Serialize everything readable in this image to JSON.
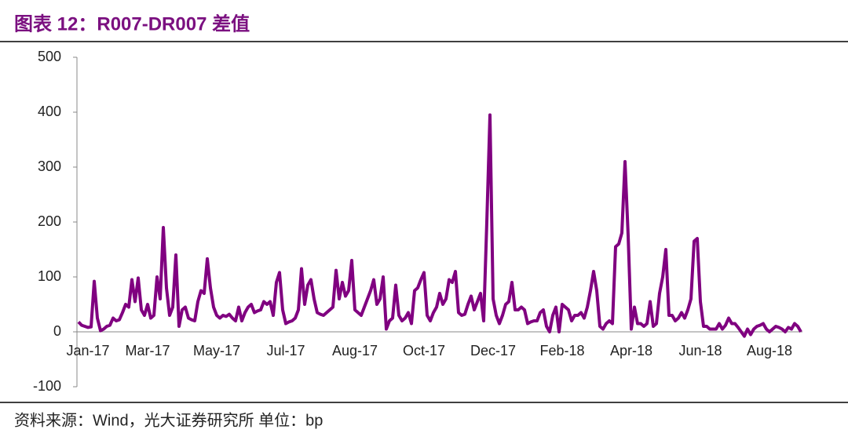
{
  "chart_data": {
    "type": "line",
    "title": "图表 12：R007-DR007 差值",
    "source": "资料来源：Wind，光大证券研究所 单位：bp",
    "color": "#800080",
    "ylim": [
      -100,
      500
    ],
    "yticks": [
      -100,
      0,
      100,
      200,
      300,
      400,
      500
    ],
    "grid": false,
    "categories": [
      null,
      null,
      null,
      "Jan-17",
      null,
      null,
      null,
      null,
      null,
      null,
      null,
      null,
      null,
      null,
      null,
      null,
      null,
      null,
      null,
      null,
      null,
      null,
      "Mar-17",
      null,
      null,
      null,
      null,
      null,
      null,
      null,
      null,
      null,
      null,
      null,
      null,
      null,
      null,
      null,
      null,
      null,
      null,
      null,
      null,
      null,
      "May-17",
      null,
      null,
      null,
      null,
      null,
      null,
      null,
      null,
      null,
      null,
      null,
      null,
      null,
      null,
      null,
      null,
      null,
      null,
      null,
      null,
      null,
      "Jul-17",
      null,
      null,
      null,
      null,
      null,
      null,
      null,
      null,
      null,
      null,
      null,
      null,
      null,
      null,
      null,
      null,
      null,
      null,
      null,
      null,
      null,
      "Aug-17",
      null,
      null,
      null,
      null,
      null,
      null,
      null,
      null,
      null,
      null,
      null,
      null,
      null,
      null,
      null,
      null,
      null,
      null,
      null,
      null,
      null,
      "Oct-17",
      null,
      null,
      null,
      null,
      null,
      null,
      null,
      null,
      null,
      null,
      null,
      null,
      null,
      null,
      null,
      null,
      null,
      null,
      null,
      null,
      null,
      "Dec-17",
      null,
      null,
      null,
      null,
      null,
      null,
      null,
      null,
      null,
      null,
      null,
      null,
      null,
      null,
      null,
      null,
      null,
      null,
      null,
      null,
      null,
      "Feb-18",
      null,
      null,
      null,
      null,
      null,
      null,
      null,
      null,
      null,
      null,
      null,
      null,
      null,
      null,
      null,
      null,
      null,
      null,
      null,
      null,
      null,
      "Apr-18",
      null,
      null,
      null,
      null,
      null,
      null,
      null,
      null,
      null,
      null,
      null,
      null,
      null,
      null,
      null,
      null,
      null,
      null,
      null,
      null,
      null,
      "Jun-18",
      null,
      null,
      null,
      null,
      null,
      null,
      null,
      null,
      null,
      null,
      null,
      null,
      null,
      null,
      null,
      null,
      null,
      null,
      null,
      null,
      null,
      "Aug-18",
      null,
      null,
      null,
      null,
      null,
      null,
      null,
      null,
      null,
      null
    ],
    "values": [
      18,
      12,
      10,
      8,
      9,
      92,
      25,
      2,
      5,
      10,
      12,
      25,
      20,
      22,
      35,
      50,
      45,
      95,
      55,
      98,
      40,
      30,
      50,
      25,
      30,
      100,
      60,
      190,
      80,
      30,
      45,
      140,
      10,
      40,
      45,
      25,
      22,
      20,
      55,
      75,
      70,
      133,
      80,
      45,
      30,
      25,
      30,
      28,
      32,
      25,
      20,
      45,
      20,
      35,
      45,
      50,
      35,
      38,
      40,
      55,
      50,
      55,
      30,
      90,
      108,
      40,
      15,
      18,
      20,
      25,
      40,
      115,
      50,
      85,
      95,
      60,
      35,
      32,
      30,
      35,
      40,
      45,
      112,
      60,
      90,
      65,
      75,
      130,
      40,
      35,
      30,
      45,
      60,
      75,
      95,
      50,
      60,
      100,
      5,
      20,
      25,
      85,
      30,
      20,
      25,
      35,
      15,
      75,
      80,
      95,
      108,
      30,
      20,
      35,
      45,
      70,
      50,
      60,
      95,
      90,
      110,
      35,
      30,
      32,
      50,
      65,
      40,
      55,
      70,
      20,
      200,
      395,
      60,
      30,
      15,
      30,
      50,
      55,
      90,
      40,
      40,
      45,
      40,
      15,
      18,
      20,
      20,
      35,
      40,
      10,
      0,
      30,
      45,
      0,
      50,
      45,
      40,
      20,
      30,
      30,
      35,
      25,
      45,
      75,
      110,
      75,
      10,
      5,
      15,
      20,
      15,
      155,
      160,
      180,
      310,
      175,
      5,
      45,
      15,
      15,
      10,
      15,
      55,
      10,
      15,
      70,
      100,
      150,
      30,
      30,
      20,
      25,
      35,
      25,
      40,
      60,
      165,
      170,
      55,
      10,
      10,
      5,
      5,
      5,
      15,
      5,
      12,
      25,
      15,
      15,
      8,
      0,
      -8,
      5,
      -5,
      5,
      10,
      12,
      15,
      5,
      0,
      5,
      10,
      8,
      5,
      0,
      8,
      5,
      15,
      10,
      0
    ]
  }
}
